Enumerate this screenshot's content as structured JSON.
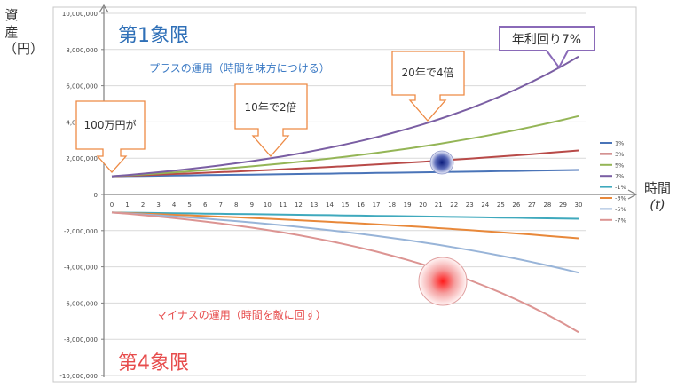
{
  "chart_data": {
    "type": "line",
    "x": [
      0,
      1,
      2,
      3,
      4,
      5,
      6,
      7,
      8,
      9,
      10,
      11,
      12,
      13,
      14,
      15,
      16,
      17,
      18,
      19,
      20,
      21,
      22,
      23,
      24,
      25,
      26,
      27,
      28,
      29,
      30
    ],
    "ylim": [
      -10000000,
      10000000
    ],
    "yticks": [
      -10000000,
      -8000000,
      -6000000,
      -4000000,
      -2000000,
      0,
      2000000,
      4000000,
      6000000,
      8000000,
      10000000
    ],
    "ytick_labels": [
      "-10,000,000",
      "-8,000,000",
      "-6,000,000",
      "-4,000,000",
      "-2,000,000",
      "0",
      "2,000,000",
      "4,000,000",
      "6,000,000",
      "8,000,000",
      "10,000,000"
    ],
    "ylabel": "資産（円）",
    "xlabel": "時間",
    "xlabel_unit": "(t)",
    "grid": true,
    "legend_position": "right",
    "series": [
      {
        "name": "1%",
        "rate": 0.01,
        "sign": 1,
        "color": "#4a74b8"
      },
      {
        "name": "3%",
        "rate": 0.03,
        "sign": 1,
        "color": "#b84a48"
      },
      {
        "name": "5%",
        "rate": 0.05,
        "sign": 1,
        "color": "#94b556"
      },
      {
        "name": "7%",
        "rate": 0.07,
        "sign": 1,
        "color": "#7a5ea3"
      },
      {
        "name": "-1%",
        "rate": 0.01,
        "sign": -1,
        "color": "#3fa9bd"
      },
      {
        "name": "-3%",
        "rate": 0.03,
        "sign": -1,
        "color": "#e8883a"
      },
      {
        "name": "-5%",
        "rate": 0.05,
        "sign": -1,
        "color": "#98b4d8"
      },
      {
        "name": "-7%",
        "rate": 0.07,
        "sign": -1,
        "color": "#dc9492"
      }
    ],
    "principal": 1000000,
    "quadrant_labels": {
      "q1": "第1象限",
      "q4": "第4象限"
    },
    "texts": {
      "plus": "プラスの運用（時間を味方につける）",
      "minus": "マイナスの運用（時間を敵に回す）"
    },
    "callouts": [
      {
        "id": "start",
        "text": "100万円が"
      },
      {
        "id": "ten",
        "text": "10年で2倍"
      },
      {
        "id": "twenty",
        "text": "20年で4倍"
      },
      {
        "id": "rate",
        "text": "年利回り7%"
      }
    ]
  },
  "colors": {
    "quadrant_text": "#2e6fb7",
    "plus_text": "#3a79c4",
    "minus_text": "#e74c4c",
    "callout_border": "#ed8a45",
    "rate_border": "#8a6ab8",
    "grid": "#d9d9d9",
    "axis": "#7f7f7f"
  }
}
